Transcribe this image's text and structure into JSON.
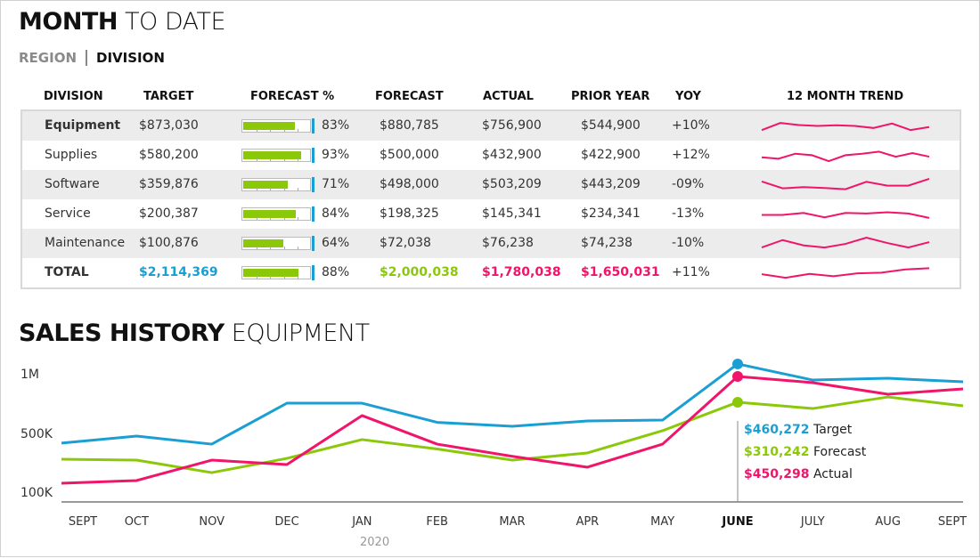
{
  "header": {
    "title_bold": "MONTH",
    "title_light": "TO DATE"
  },
  "tabs": [
    {
      "label": "REGION",
      "active": false
    },
    {
      "label": "DIVISION",
      "active": true
    }
  ],
  "table": {
    "columns": [
      "DIVISION",
      "TARGET",
      "FORECAST %",
      "FORECAST",
      "ACTUAL",
      "PRIOR YEAR",
      "YOY",
      "12 MONTH TREND"
    ],
    "rows": [
      {
        "division": "Equipment",
        "target": "$873,030",
        "pct": 83,
        "pct_label": "83%",
        "forecast": "$880,785",
        "actual": "$756,900",
        "prior": "$544,900",
        "yoy": "+10%",
        "trend": [
          8,
          32,
          25,
          22,
          24,
          22,
          15,
          30,
          8,
          18
        ]
      },
      {
        "division": "Supplies",
        "target": "$580,200",
        "pct": 93,
        "pct_label": "93%",
        "forecast": "$500,000",
        "actual": "$432,900",
        "prior": "$422,900",
        "yoy": "+12%",
        "trend": [
          23,
          18,
          35,
          30,
          10,
          30,
          35,
          42,
          25,
          37,
          25
        ]
      },
      {
        "division": "Software",
        "target": "$359,876",
        "pct": 71,
        "pct_label": "71%",
        "forecast": "$498,000",
        "actual": "$503,209",
        "prior": "$443,209",
        "yoy": "-09%",
        "trend": [
          36,
          13,
          17,
          14,
          10,
          35,
          22,
          22,
          45
        ]
      },
      {
        "division": "Service",
        "target": "$200,387",
        "pct": 84,
        "pct_label": "84%",
        "forecast": "$198,325",
        "actual": "$145,341",
        "prior": "$234,341",
        "yoy": "-13%",
        "trend": [
          23,
          23,
          30,
          15,
          30,
          28,
          32,
          28,
          13
        ]
      },
      {
        "division": "Maintenance",
        "target": "$100,876",
        "pct": 64,
        "pct_label": "64%",
        "forecast": "$72,038",
        "actual": "$76,238",
        "prior": "$74,238",
        "yoy": "-10%",
        "trend": [
          20,
          45,
          27,
          20,
          32,
          53,
          35,
          20,
          38
        ]
      },
      {
        "division": "TOTAL",
        "target": "$2,114,369",
        "pct": 88,
        "pct_label": "88%",
        "forecast": "$2,000,038",
        "actual": "$1,780,038",
        "prior": "$1,650,031",
        "yoy": "+11%",
        "trend": [
          22,
          10,
          23,
          15,
          25,
          27,
          38,
          42
        ],
        "total": true
      }
    ]
  },
  "colors": {
    "target": "#1a9fd4",
    "forecast": "#8cc80a",
    "actual": "#f0146a"
  },
  "sales": {
    "title_bold": "SALES HISTORY",
    "title_light": "EQUIPMENT"
  },
  "chart_data": {
    "type": "line",
    "categories": [
      "SEPT",
      "OCT",
      "NOV",
      "DEC",
      "JAN",
      "FEB",
      "MAR",
      "APR",
      "MAY",
      "JUNE",
      "JULY",
      "AUG",
      "SEPT"
    ],
    "year_label": "2020",
    "highlight": "JUNE",
    "y_ticks": [
      {
        "label": "1M",
        "value": 1000000
      },
      {
        "label": "500K",
        "value": 500000
      },
      {
        "label": "100K",
        "value": 100000
      }
    ],
    "series": [
      {
        "key": "target",
        "values": [
          440000,
          488000,
          433000,
          761000,
          761000,
          600000,
          567000,
          612000,
          619000,
          1090000,
          955000,
          970000,
          940000
        ]
      },
      {
        "key": "forecast",
        "values": [
          330000,
          324000,
          239000,
          336000,
          464000,
          400000,
          324000,
          373000,
          530000,
          769000,
          716000,
          813000,
          739000
        ]
      },
      {
        "key": "actual",
        "values": [
          167000,
          185000,
          324000,
          294000,
          657000,
          433000,
          350000,
          276000,
          433000,
          985000,
          933000,
          836000,
          881000
        ]
      }
    ],
    "tooltip": [
      {
        "value": "$460,272",
        "name": "Target",
        "key": "target"
      },
      {
        "value": "$310,242",
        "name": "Forecast",
        "key": "forecast"
      },
      {
        "value": "$450,298",
        "name": "Actual",
        "key": "actual"
      }
    ]
  }
}
